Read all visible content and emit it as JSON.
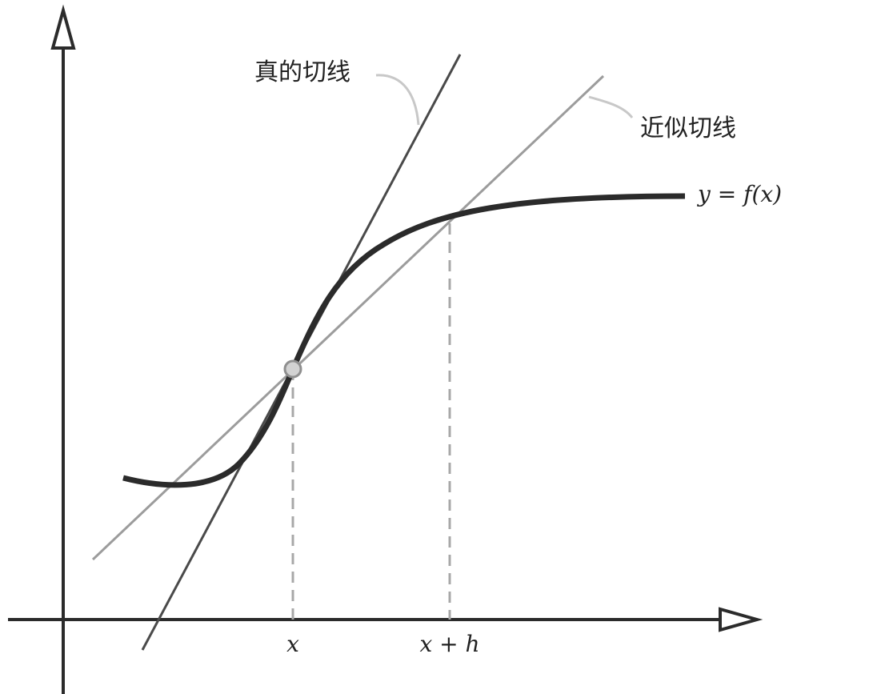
{
  "labels": {
    "true_tangent": "真的切线",
    "approx_tangent": "近似切线",
    "curve": "y = f(x)",
    "x_tick": "x",
    "xh_tick": "x + h"
  },
  "colors": {
    "axis": "#2b2b2b",
    "curve": "#2b2b2b",
    "true_tangent_line": "#4a4a4a",
    "approx_tangent_line": "#9c9c9c",
    "dashed_guide": "#a8a8a8",
    "leader_line": "#c8c8c8",
    "point_fill": "#d2d2d2",
    "point_stroke": "#8f8f8f"
  }
}
